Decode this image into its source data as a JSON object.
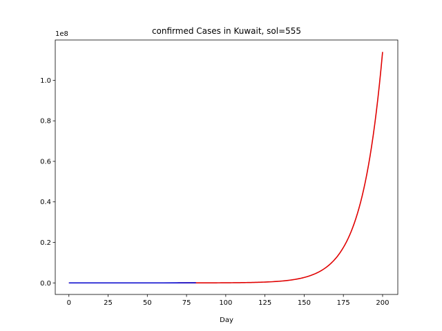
{
  "chart_data": {
    "type": "line",
    "title": "confirmed Cases in Kuwait, sol=555",
    "xlabel": "Day",
    "ylabel": "",
    "y_offset_label": "1e8",
    "y_scale_exponent": 8,
    "xlim": [
      -8.7,
      209.7
    ],
    "ylim": [
      -0.057,
      1.199
    ],
    "x_ticks": [
      0,
      25,
      50,
      75,
      100,
      125,
      150,
      175,
      200
    ],
    "x_tick_labels": [
      "0",
      "25",
      "50",
      "75",
      "100",
      "125",
      "150",
      "175",
      "200"
    ],
    "y_ticks": [
      0,
      0.2,
      0.4,
      0.6,
      0.8,
      1.0
    ],
    "y_tick_labels": [
      "0.0",
      "0.2",
      "0.4",
      "0.6",
      "0.8",
      "1.0"
    ],
    "grid": false,
    "legend": "none",
    "model_curve": {
      "color": "#e00000",
      "x_start": 0,
      "x_end": 200,
      "y_end": 1.14,
      "growth_rate": 0.075
    },
    "series": [
      {
        "color": "#e00000",
        "x": [
          0,
          100,
          125,
          140,
          150,
          160,
          170,
          180,
          190,
          200
        ],
        "values": [
          0,
          0.0006,
          0.0045,
          0.014,
          0.03,
          0.064,
          0.135,
          0.286,
          0.606,
          1.14
        ]
      },
      {
        "color": "#0000cc",
        "x": [
          0,
          20,
          40,
          60,
          81
        ],
        "values": [
          0,
          0,
          0,
          0,
          0.0008
        ]
      }
    ]
  }
}
